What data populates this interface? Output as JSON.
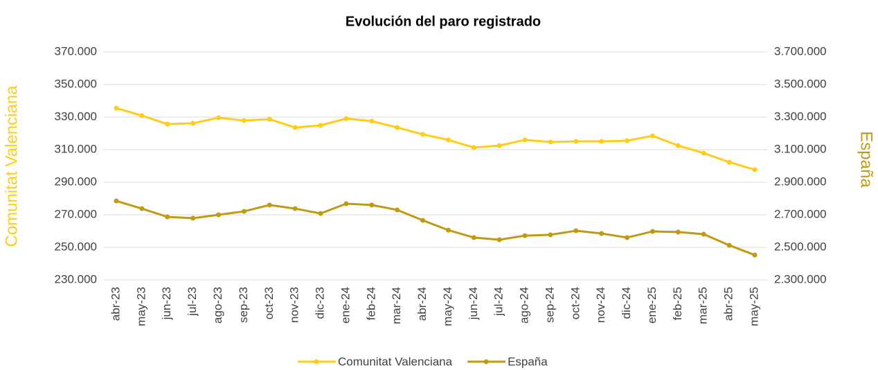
{
  "chart_data": {
    "type": "line",
    "title": "Evolución del paro registrado",
    "y_label": "Comunitat Valenciana",
    "y2_label": "España",
    "categories": [
      "abr-23",
      "may-23",
      "jun-23",
      "jul-23",
      "ago-23",
      "sep-23",
      "oct-23",
      "nov-23",
      "dic-23",
      "ene-24",
      "feb-24",
      "mar-24",
      "abr-24",
      "may-24",
      "jun-24",
      "jul-24",
      "ago-24",
      "sep-24",
      "oct-24",
      "nov-24",
      "dic-24",
      "ene-25",
      "feb-25",
      "mar-25",
      "abr-25",
      "may-25"
    ],
    "series": [
      {
        "name": "Comunitat Valenciana",
        "color": "#FFCC1A",
        "axis": "y",
        "values": [
          335500,
          330900,
          325700,
          326200,
          329600,
          327900,
          328700,
          323600,
          324900,
          329100,
          327500,
          323600,
          319400,
          316000,
          311300,
          312500,
          316000,
          314700,
          315100,
          315100,
          315500,
          318500,
          312500,
          307900,
          302300,
          297700
        ]
      },
      {
        "name": "España",
        "color": "#BF9A12",
        "axis": "y2",
        "values": [
          2785000,
          2738000,
          2687000,
          2679000,
          2700000,
          2721000,
          2760000,
          2738000,
          2708000,
          2768000,
          2760000,
          2730000,
          2666000,
          2606000,
          2560000,
          2547000,
          2572000,
          2577000,
          2602000,
          2585000,
          2560000,
          2598000,
          2594000,
          2581000,
          2513000,
          2453000
        ]
      }
    ],
    "ylim": [
      230000,
      370000
    ],
    "yticks": [
      {
        "value": 230000,
        "label": "230.000"
      },
      {
        "value": 250000,
        "label": "250.000"
      },
      {
        "value": 270000,
        "label": "270.000"
      },
      {
        "value": 290000,
        "label": "290.000"
      },
      {
        "value": 310000,
        "label": "310.000"
      },
      {
        "value": 330000,
        "label": "330.000"
      },
      {
        "value": 350000,
        "label": "350.000"
      },
      {
        "value": 370000,
        "label": "370.000"
      }
    ],
    "y2lim": [
      2300000,
      3700000
    ],
    "y2ticks": [
      {
        "value": 2300000,
        "label": "2.300.000"
      },
      {
        "value": 2500000,
        "label": "2.500.000"
      },
      {
        "value": 2700000,
        "label": "2.700.000"
      },
      {
        "value": 2900000,
        "label": "2.900.000"
      },
      {
        "value": 3100000,
        "label": "3.100.000"
      },
      {
        "value": 3300000,
        "label": "3.300.000"
      },
      {
        "value": 3500000,
        "label": "3.500.000"
      },
      {
        "value": 3700000,
        "label": "3.700.000"
      }
    ],
    "grid": true,
    "legend": "bottom"
  }
}
